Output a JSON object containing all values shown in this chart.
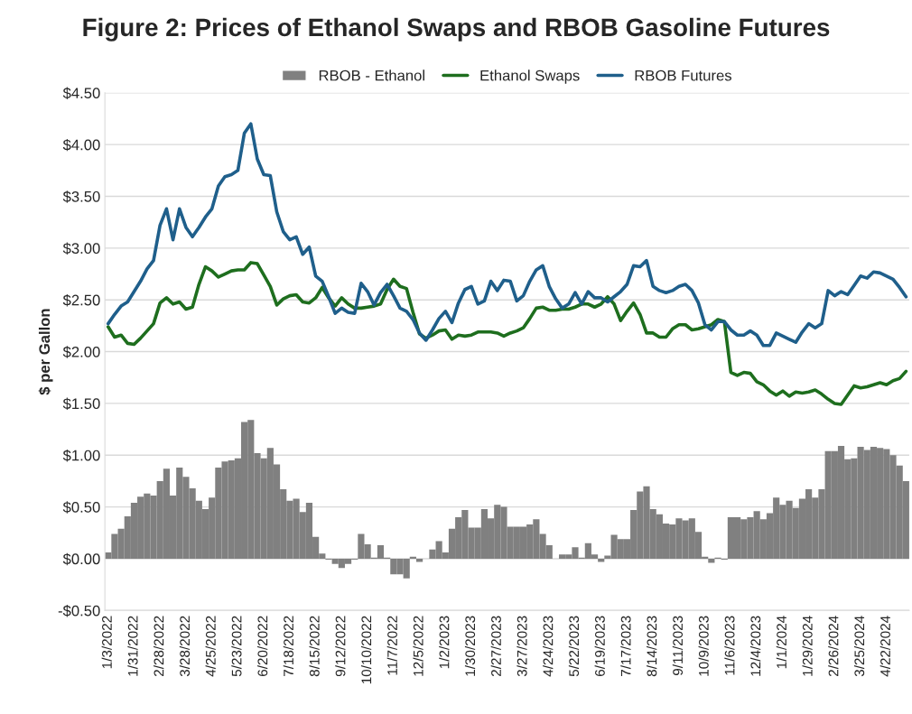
{
  "chart_data": {
    "type": "bar",
    "title": "Figure 2: Prices of Ethanol Swaps and RBOB Gasoline Futures",
    "ylabel": "$ per Gallon",
    "categories": [
      "1/3/2022",
      null,
      null,
      null,
      "1/31/2022",
      null,
      null,
      null,
      "2/28/2022",
      null,
      null,
      null,
      "3/28/2022",
      null,
      null,
      null,
      "4/25/2022",
      null,
      null,
      null,
      "5/23/2022",
      null,
      null,
      null,
      "6/20/2022",
      null,
      null,
      null,
      "7/18/2022",
      null,
      null,
      null,
      "8/15/2022",
      null,
      null,
      null,
      "9/12/2022",
      null,
      null,
      null,
      "10/10/2022",
      null,
      null,
      null,
      "11/7/2022",
      null,
      null,
      null,
      "12/5/2022",
      null,
      null,
      null,
      "1/2/2023",
      null,
      null,
      null,
      "1/30/2023",
      null,
      null,
      null,
      "2/27/2023",
      null,
      null,
      null,
      "3/27/2023",
      null,
      null,
      null,
      "4/24/2023",
      null,
      null,
      null,
      "5/22/2023",
      null,
      null,
      null,
      "6/19/2023",
      null,
      null,
      null,
      "7/17/2023",
      null,
      null,
      null,
      "8/14/2023",
      null,
      null,
      null,
      "9/11/2023",
      null,
      null,
      null,
      "10/9/2023",
      null,
      null,
      null,
      "11/6/2023",
      null,
      null,
      null,
      "12/4/2023",
      null,
      null,
      null,
      "1/1/2024",
      null,
      null,
      null,
      "1/29/2024",
      null,
      null,
      null,
      "2/26/2024",
      null,
      null,
      null,
      "3/25/2024",
      null,
      null,
      null,
      "4/22/2024",
      null,
      null,
      null
    ],
    "series": [
      {
        "name": "RBOB - Ethanol",
        "color": "#808080",
        "values": [
          0.06,
          0.24,
          0.29,
          0.41,
          0.54,
          0.6,
          0.63,
          0.61,
          0.75,
          0.87,
          0.61,
          0.88,
          0.79,
          0.68,
          0.56,
          0.48,
          0.59,
          0.88,
          0.94,
          0.95,
          0.97,
          1.32,
          1.34,
          1.02,
          0.97,
          1.07,
          0.91,
          0.67,
          0.56,
          0.58,
          0.45,
          0.54,
          0.21,
          0.05,
          -0.01,
          -0.05,
          -0.09,
          -0.05,
          -0.01,
          0.24,
          0.14,
          0.01,
          0.13,
          0.01,
          -0.15,
          -0.15,
          -0.19,
          0.02,
          -0.03,
          0.0,
          0.09,
          0.17,
          0.06,
          0.29,
          0.4,
          0.47,
          0.3,
          0.3,
          0.48,
          0.39,
          0.52,
          0.5,
          0.31,
          0.31,
          0.31,
          0.33,
          0.38,
          0.24,
          0.13,
          0.0,
          0.04,
          0.04,
          0.11,
          0.01,
          0.15,
          0.04,
          -0.03,
          0.03,
          0.23,
          0.19,
          0.19,
          0.47,
          0.65,
          0.7,
          0.48,
          0.43,
          0.34,
          0.33,
          0.39,
          0.37,
          0.39,
          0.26,
          0.02,
          -0.04,
          0.01,
          -0.01,
          0.4,
          0.4,
          0.38,
          0.4,
          0.46,
          0.38,
          0.44,
          0.59,
          0.52,
          0.56,
          0.49,
          0.58,
          0.67,
          0.59,
          0.67,
          1.04,
          1.04,
          1.09,
          0.96,
          0.97,
          1.08,
          1.05,
          1.08,
          1.07,
          1.06,
          1.0,
          0.9,
          0.75
        ]
      },
      {
        "name": "Ethanol Swaps",
        "type": "line",
        "color": "#1e6e1e",
        "values": [
          2.24,
          2.14,
          2.16,
          2.08,
          2.07,
          2.13,
          2.2,
          2.27,
          2.47,
          2.52,
          2.46,
          2.48,
          2.41,
          2.43,
          2.65,
          2.82,
          2.78,
          2.72,
          2.75,
          2.78,
          2.79,
          2.79,
          2.86,
          2.85,
          2.74,
          2.63,
          2.45,
          2.51,
          2.54,
          2.55,
          2.48,
          2.47,
          2.52,
          2.62,
          2.52,
          2.44,
          2.52,
          2.46,
          2.42,
          2.42,
          2.43,
          2.44,
          2.46,
          2.6,
          2.7,
          2.63,
          2.61,
          2.38,
          2.17,
          2.13,
          2.16,
          2.2,
          2.21,
          2.12,
          2.16,
          2.15,
          2.16,
          2.19,
          2.19,
          2.19,
          2.18,
          2.15,
          2.18,
          2.2,
          2.23,
          2.32,
          2.42,
          2.43,
          2.4,
          2.4,
          2.41,
          2.41,
          2.43,
          2.46,
          2.46,
          2.43,
          2.46,
          2.53,
          2.46,
          2.3,
          2.39,
          2.47,
          2.36,
          2.18,
          2.18,
          2.14,
          2.14,
          2.22,
          2.26,
          2.26,
          2.21,
          2.22,
          2.24,
          2.26,
          2.31,
          2.29,
          1.8,
          1.77,
          1.8,
          1.79,
          1.71,
          1.68,
          1.62,
          1.58,
          1.62,
          1.57,
          1.61,
          1.6,
          1.61,
          1.63,
          1.59,
          1.54,
          1.5,
          1.49,
          1.58,
          1.67,
          1.65,
          1.66,
          1.68,
          1.7,
          1.68,
          1.72,
          1.74,
          1.81
        ]
      },
      {
        "name": "RBOB Futures",
        "type": "line",
        "color": "#1f5f8b",
        "values": [
          2.27,
          2.36,
          2.44,
          2.48,
          2.58,
          2.68,
          2.8,
          2.88,
          3.22,
          3.38,
          3.08,
          3.38,
          3.2,
          3.11,
          3.2,
          3.3,
          3.38,
          3.6,
          3.69,
          3.71,
          3.75,
          4.11,
          4.2,
          3.86,
          3.71,
          3.7,
          3.35,
          3.16,
          3.08,
          3.11,
          2.94,
          3.01,
          2.73,
          2.68,
          2.53,
          2.37,
          2.42,
          2.38,
          2.37,
          2.66,
          2.58,
          2.45,
          2.57,
          2.65,
          2.54,
          2.42,
          2.39,
          2.31,
          2.18,
          2.11,
          2.21,
          2.32,
          2.39,
          2.28,
          2.47,
          2.6,
          2.63,
          2.46,
          2.49,
          2.68,
          2.59,
          2.69,
          2.68,
          2.49,
          2.54,
          2.68,
          2.79,
          2.83,
          2.63,
          2.51,
          2.42,
          2.46,
          2.57,
          2.46,
          2.58,
          2.52,
          2.52,
          2.48,
          2.53,
          2.58,
          2.65,
          2.83,
          2.82,
          2.88,
          2.63,
          2.59,
          2.57,
          2.59,
          2.63,
          2.65,
          2.59,
          2.47,
          2.26,
          2.21,
          2.29,
          2.29,
          2.21,
          2.16,
          2.16,
          2.2,
          2.16,
          2.06,
          2.06,
          2.18,
          2.15,
          2.12,
          2.09,
          2.19,
          2.27,
          2.23,
          2.27,
          2.59,
          2.54,
          2.58,
          2.55,
          2.64,
          2.73,
          2.71,
          2.77,
          2.76,
          2.73,
          2.7,
          2.62,
          2.53
        ]
      }
    ],
    "ylim": [
      -0.5,
      4.5
    ],
    "yticks": [
      {
        "value": -0.5,
        "label": "-$0.50"
      },
      {
        "value": 0,
        "label": "$0.00"
      },
      {
        "value": 0.5,
        "label": "$0.50"
      },
      {
        "value": 1,
        "label": "$1.00"
      },
      {
        "value": 1.5,
        "label": "$1.50"
      },
      {
        "value": 2,
        "label": "$2.00"
      },
      {
        "value": 2.5,
        "label": "$2.50"
      },
      {
        "value": 3,
        "label": "$3.00"
      },
      {
        "value": 3.5,
        "label": "$3.50"
      },
      {
        "value": 4,
        "label": "$4.00"
      },
      {
        "value": 4.5,
        "label": "$4.50"
      }
    ],
    "grid": "y",
    "legend": "top",
    "marker": "none",
    "line_style": "solid"
  }
}
